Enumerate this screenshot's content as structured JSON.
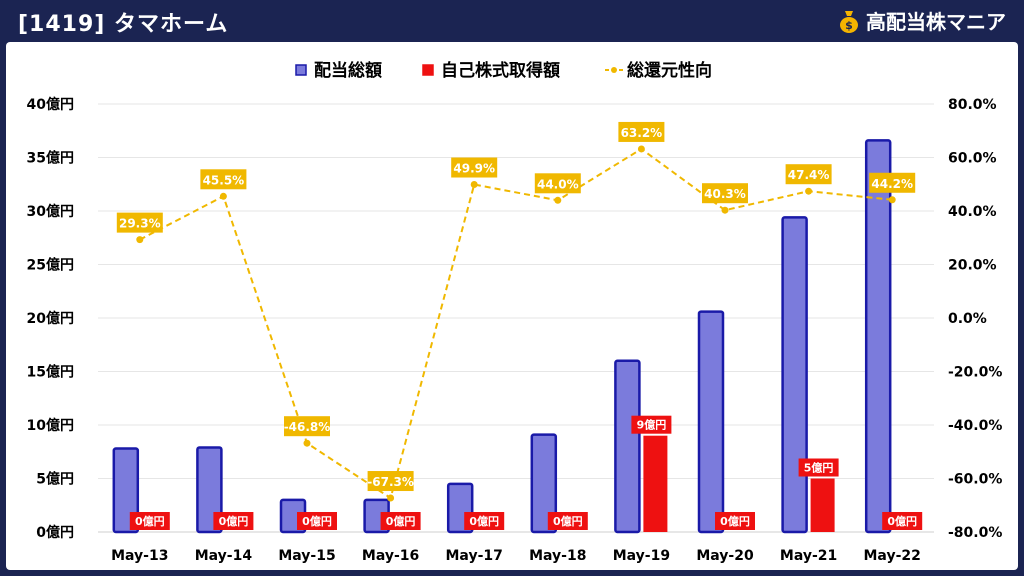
{
  "header": {
    "title": "[1419] タマホーム",
    "brand": "高配当株マニア"
  },
  "colors": {
    "background": "#1b2452",
    "dividend_bar": "#7b7bdc",
    "dividend_border": "#1a1aa8",
    "buyback_bar": "#ee1111",
    "payout_line": "#f0b800"
  },
  "chart_data": {
    "type": "bar",
    "categories": [
      "May-13",
      "May-14",
      "May-15",
      "May-16",
      "May-17",
      "May-18",
      "May-19",
      "May-20",
      "May-21",
      "May-22"
    ],
    "series": [
      {
        "name": "配当総額",
        "kind": "bar",
        "axis": "left",
        "values": [
          7.8,
          7.9,
          3.0,
          3.0,
          4.5,
          9.1,
          16.0,
          20.6,
          29.4,
          36.6
        ]
      },
      {
        "name": "自己株式取得額",
        "kind": "bar",
        "axis": "left",
        "values": [
          0,
          0,
          0,
          0,
          0,
          0,
          9,
          0,
          5,
          0
        ],
        "labels": [
          "0億円",
          "0億円",
          "0億円",
          "0億円",
          "0億円",
          "0億円",
          "9億円",
          "0億円",
          "5億円",
          "0億円"
        ]
      },
      {
        "name": "総還元性向",
        "kind": "line",
        "axis": "right",
        "values": [
          29.3,
          45.5,
          -46.8,
          -67.3,
          49.9,
          44.0,
          63.2,
          40.3,
          47.4,
          44.2
        ],
        "labels": [
          "29.3%",
          "45.5%",
          "-46.8%",
          "-67.3%",
          "49.9%",
          "44.0%",
          "63.2%",
          "40.3%",
          "47.4%",
          "44.2%"
        ]
      }
    ],
    "y_left": {
      "min": 0,
      "max": 40,
      "ticks": [
        "0億円",
        "5億円",
        "10億円",
        "15億円",
        "20億円",
        "25億円",
        "30億円",
        "35億円",
        "40億円"
      ]
    },
    "y_right": {
      "min": -80,
      "max": 80,
      "ticks": [
        "-80.0%",
        "-60.0%",
        "-40.0%",
        "-20.0%",
        "0.0%",
        "20.0%",
        "40.0%",
        "60.0%",
        "80.0%"
      ]
    },
    "legend_position": "top-center",
    "grid": true
  }
}
